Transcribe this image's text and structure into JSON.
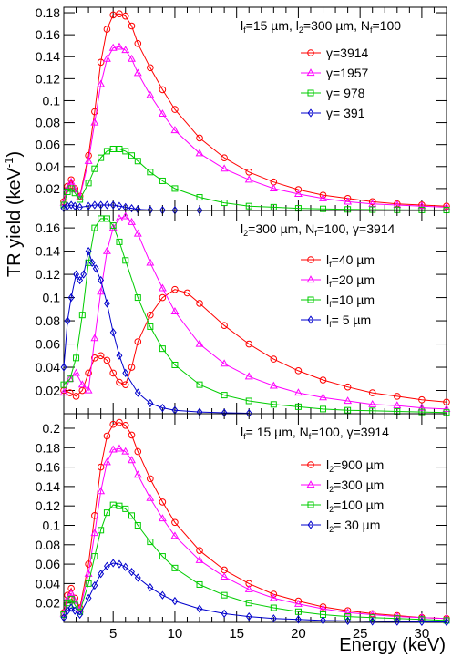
{
  "figure": {
    "ylabel": "TR yield (keV",
    "ylabel_sup": "-1",
    "ylabel_close": ")",
    "xlabel": "Energy (keV)"
  },
  "chart_data": [
    {
      "type": "line",
      "panel": "top",
      "header": [
        {
          "t": "l",
          "sub": "f"
        },
        {
          "t": "=15 µm, l"
        },
        {
          "t": "",
          "sub": "2"
        },
        {
          "t": "=300 µm, N"
        },
        {
          "t": "",
          "sub": "f"
        },
        {
          "t": "=100"
        }
      ],
      "ylim": [
        0,
        0.185
      ],
      "yticks": [
        0.02,
        0.04,
        0.06,
        0.08,
        0.1,
        0.12,
        0.14,
        0.16,
        0.18
      ],
      "legend_placement": "top-right",
      "series": [
        {
          "name": [
            {
              "t": "γ=3914"
            }
          ],
          "color": "#ff0000",
          "marker": "circle",
          "x": [
            1,
            1.3,
            1.6,
            1.9,
            2.3,
            3,
            3.5,
            4,
            4.5,
            5,
            5.5,
            6,
            6.5,
            7,
            8,
            9,
            10,
            12,
            14,
            16,
            18,
            20,
            22,
            24,
            26,
            28,
            30,
            32
          ],
          "values": [
            0.008,
            0.022,
            0.028,
            0.02,
            0.013,
            0.05,
            0.09,
            0.135,
            0.165,
            0.178,
            0.179,
            0.177,
            0.168,
            0.152,
            0.13,
            0.11,
            0.092,
            0.066,
            0.048,
            0.035,
            0.026,
            0.019,
            0.014,
            0.011,
            0.008,
            0.006,
            0.005,
            0.004
          ]
        },
        {
          "name": [
            {
              "t": "γ=1957"
            }
          ],
          "color": "#ff00ff",
          "marker": "triangle",
          "x": [
            1,
            1.3,
            1.6,
            1.9,
            2.3,
            3,
            3.5,
            4,
            4.5,
            5,
            5.5,
            6,
            6.5,
            7,
            8,
            9,
            10,
            12,
            14,
            16,
            18,
            20,
            22,
            24,
            26,
            28,
            30,
            32
          ],
          "values": [
            0.007,
            0.02,
            0.026,
            0.019,
            0.012,
            0.045,
            0.08,
            0.115,
            0.138,
            0.148,
            0.149,
            0.146,
            0.138,
            0.125,
            0.105,
            0.088,
            0.073,
            0.052,
            0.038,
            0.028,
            0.02,
            0.015,
            0.011,
            0.008,
            0.006,
            0.005,
            0.004,
            0.003
          ]
        },
        {
          "name": [
            {
              "t": "γ= 978"
            }
          ],
          "color": "#00cc00",
          "marker": "square",
          "x": [
            1,
            1.3,
            1.6,
            1.9,
            2.3,
            3,
            3.5,
            4,
            4.5,
            5,
            5.5,
            6,
            6.5,
            7,
            8,
            9,
            10,
            12,
            14,
            16,
            18,
            20,
            22,
            24,
            26,
            28,
            30,
            32
          ],
          "values": [
            0.005,
            0.017,
            0.02,
            0.016,
            0.01,
            0.025,
            0.038,
            0.048,
            0.054,
            0.056,
            0.056,
            0.054,
            0.05,
            0.045,
            0.035,
            0.027,
            0.02,
            0.012,
            0.007,
            0.004,
            0.003,
            0.002,
            0.0015,
            0.001,
            0.0008,
            0.0006,
            0.0005,
            0.0004
          ]
        },
        {
          "name": [
            {
              "t": "γ= 391"
            }
          ],
          "color": "#0000cc",
          "marker": "diamond",
          "x": [
            1,
            1.3,
            1.6,
            1.9,
            2.3,
            3,
            3.5,
            4,
            4.5,
            5,
            5.5,
            6,
            6.5,
            7,
            8,
            9,
            10,
            12
          ],
          "values": [
            0.002,
            0.004,
            0.005,
            0.004,
            0.003,
            0.004,
            0.005,
            0.005,
            0.005,
            0.005,
            0.004,
            0.003,
            0.002,
            0.001,
            0.0005,
            0.0003,
            0.0002,
            0.0001
          ]
        }
      ]
    },
    {
      "type": "line",
      "panel": "middle",
      "header": [
        {
          "t": "l",
          "sub": "2"
        },
        {
          "t": "=300 µm, N"
        },
        {
          "t": "",
          "sub": "f"
        },
        {
          "t": "=100, γ=3914"
        }
      ],
      "ylim": [
        0,
        0.175
      ],
      "yticks": [
        0.02,
        0.04,
        0.06,
        0.08,
        0.1,
        0.12,
        0.14,
        0.16
      ],
      "legend_placement": "top-right",
      "series": [
        {
          "name": [
            {
              "t": "l",
              "sub": "f"
            },
            {
              "t": "=40 µm"
            }
          ],
          "color": "#ff0000",
          "marker": "circle",
          "x": [
            1,
            1.5,
            2,
            2.5,
            3,
            3.5,
            4,
            4.5,
            5,
            5.5,
            6,
            6.5,
            7,
            8,
            9,
            10,
            11,
            12,
            14,
            16,
            18,
            20,
            22,
            24,
            26,
            28,
            30,
            32
          ],
          "values": [
            0.02,
            0.018,
            0.015,
            0.02,
            0.035,
            0.048,
            0.05,
            0.046,
            0.035,
            0.027,
            0.025,
            0.04,
            0.062,
            0.085,
            0.1,
            0.107,
            0.104,
            0.095,
            0.076,
            0.06,
            0.047,
            0.037,
            0.029,
            0.023,
            0.018,
            0.015,
            0.012,
            0.01
          ]
        },
        {
          "name": [
            {
              "t": "l",
              "sub": "f"
            },
            {
              "t": "=20 µm"
            }
          ],
          "color": "#ff00ff",
          "marker": "triangle",
          "x": [
            1,
            1.5,
            2,
            2.5,
            3,
            3.5,
            4,
            4.5,
            5,
            5.5,
            6,
            6.5,
            7,
            8,
            9,
            10,
            12,
            14,
            16,
            18,
            20,
            22,
            24,
            26,
            28,
            30,
            32
          ],
          "values": [
            0.018,
            0.03,
            0.035,
            0.025,
            0.02,
            0.065,
            0.105,
            0.14,
            0.16,
            0.168,
            0.17,
            0.165,
            0.155,
            0.13,
            0.108,
            0.088,
            0.06,
            0.043,
            0.032,
            0.024,
            0.018,
            0.014,
            0.011,
            0.008,
            0.007,
            0.005,
            0.004
          ]
        },
        {
          "name": [
            {
              "t": "l",
              "sub": "f"
            },
            {
              "t": "=10 µm"
            }
          ],
          "color": "#00cc00",
          "marker": "square",
          "x": [
            1,
            1.5,
            2,
            2.5,
            3,
            3.5,
            4,
            4.5,
            5,
            5.5,
            6,
            7,
            8,
            9,
            10,
            12,
            14,
            16,
            18,
            20,
            22,
            24,
            26,
            28,
            30,
            32
          ],
          "values": [
            0.025,
            0.03,
            0.048,
            0.085,
            0.13,
            0.16,
            0.168,
            0.168,
            0.162,
            0.148,
            0.132,
            0.1,
            0.075,
            0.056,
            0.042,
            0.025,
            0.016,
            0.011,
            0.008,
            0.006,
            0.004,
            0.003,
            0.0025,
            0.002,
            0.0015,
            0.001
          ]
        },
        {
          "name": [
            {
              "t": "l",
              "sub": "f"
            },
            {
              "t": "= 5 µm"
            }
          ],
          "color": "#0000cc",
          "marker": "diamond",
          "x": [
            1,
            1.3,
            1.6,
            2,
            2.3,
            2.6,
            3,
            3.3,
            3.6,
            4,
            4.5,
            5,
            5.5,
            6,
            7,
            8,
            9,
            10,
            12,
            14,
            16
          ],
          "values": [
            0.04,
            0.08,
            0.1,
            0.12,
            0.115,
            0.12,
            0.14,
            0.13,
            0.125,
            0.115,
            0.095,
            0.07,
            0.05,
            0.035,
            0.018,
            0.009,
            0.005,
            0.003,
            0.0015,
            0.0008,
            0.0004
          ]
        }
      ]
    },
    {
      "type": "line",
      "panel": "bottom",
      "header": [
        {
          "t": "l",
          "sub": "f"
        },
        {
          "t": "= 15 µm, N"
        },
        {
          "t": "",
          "sub": "f"
        },
        {
          "t": "=100, γ=3914"
        }
      ],
      "ylim": [
        0,
        0.215
      ],
      "yticks": [
        0.02,
        0.04,
        0.06,
        0.08,
        0.1,
        0.12,
        0.14,
        0.16,
        0.18,
        0.2
      ],
      "legend_placement": "top-right",
      "series": [
        {
          "name": [
            {
              "t": "l",
              "sub": "2"
            },
            {
              "t": "=900 µm"
            }
          ],
          "color": "#ff0000",
          "marker": "circle",
          "x": [
            1,
            1.3,
            1.6,
            1.9,
            2.3,
            3,
            3.5,
            4,
            4.5,
            5,
            5.5,
            6,
            6.5,
            7,
            8,
            9,
            10,
            12,
            14,
            16,
            18,
            20,
            22,
            24,
            26,
            28,
            30,
            32
          ],
          "values": [
            0.01,
            0.028,
            0.035,
            0.025,
            0.015,
            0.06,
            0.11,
            0.16,
            0.192,
            0.204,
            0.206,
            0.203,
            0.193,
            0.176,
            0.148,
            0.124,
            0.103,
            0.074,
            0.054,
            0.04,
            0.029,
            0.022,
            0.016,
            0.012,
            0.009,
            0.007,
            0.005,
            0.004
          ]
        },
        {
          "name": [
            {
              "t": "l",
              "sub": "2"
            },
            {
              "t": "=300 µm"
            }
          ],
          "color": "#ff00ff",
          "marker": "triangle",
          "x": [
            1,
            1.3,
            1.6,
            1.9,
            2.3,
            3,
            3.5,
            4,
            4.5,
            5,
            5.5,
            6,
            6.5,
            7,
            8,
            9,
            10,
            12,
            14,
            16,
            18,
            20,
            22,
            24,
            26,
            28,
            30,
            32
          ],
          "values": [
            0.009,
            0.024,
            0.03,
            0.022,
            0.013,
            0.05,
            0.092,
            0.135,
            0.165,
            0.178,
            0.179,
            0.176,
            0.167,
            0.152,
            0.128,
            0.107,
            0.089,
            0.064,
            0.047,
            0.034,
            0.025,
            0.019,
            0.014,
            0.01,
            0.008,
            0.006,
            0.005,
            0.004
          ]
        },
        {
          "name": [
            {
              "t": "l",
              "sub": "2"
            },
            {
              "t": "=100 µm"
            }
          ],
          "color": "#00cc00",
          "marker": "square",
          "x": [
            1,
            1.3,
            1.6,
            1.9,
            2.3,
            3,
            3.5,
            4,
            4.5,
            5,
            5.5,
            6,
            6.5,
            7,
            8,
            9,
            10,
            12,
            14,
            16,
            18,
            20,
            22,
            24,
            26,
            28,
            30,
            32
          ],
          "values": [
            0.008,
            0.02,
            0.024,
            0.018,
            0.011,
            0.04,
            0.068,
            0.095,
            0.113,
            0.121,
            0.12,
            0.117,
            0.11,
            0.1,
            0.083,
            0.068,
            0.056,
            0.039,
            0.028,
            0.02,
            0.015,
            0.011,
            0.008,
            0.006,
            0.005,
            0.004,
            0.003,
            0.002
          ]
        },
        {
          "name": [
            {
              "t": "l",
              "sub": "2"
            },
            {
              "t": "= 30 µm"
            }
          ],
          "color": "#0000cc",
          "marker": "diamond",
          "x": [
            1,
            1.3,
            1.6,
            1.9,
            2.3,
            3,
            3.5,
            4,
            4.5,
            5,
            5.5,
            6,
            6.5,
            7,
            8,
            9,
            10,
            12,
            14,
            16,
            18,
            20,
            22,
            24,
            26,
            28,
            30,
            32
          ],
          "values": [
            0.005,
            0.012,
            0.015,
            0.012,
            0.008,
            0.025,
            0.038,
            0.05,
            0.058,
            0.061,
            0.06,
            0.057,
            0.052,
            0.046,
            0.036,
            0.028,
            0.022,
            0.014,
            0.009,
            0.006,
            0.004,
            0.003,
            0.002,
            0.0015,
            0.001,
            0.0008,
            0.0006,
            0.0005
          ]
        }
      ]
    }
  ],
  "x_axis": {
    "range": [
      1,
      32
    ],
    "ticks": [
      5,
      10,
      15,
      20,
      25,
      30
    ]
  }
}
